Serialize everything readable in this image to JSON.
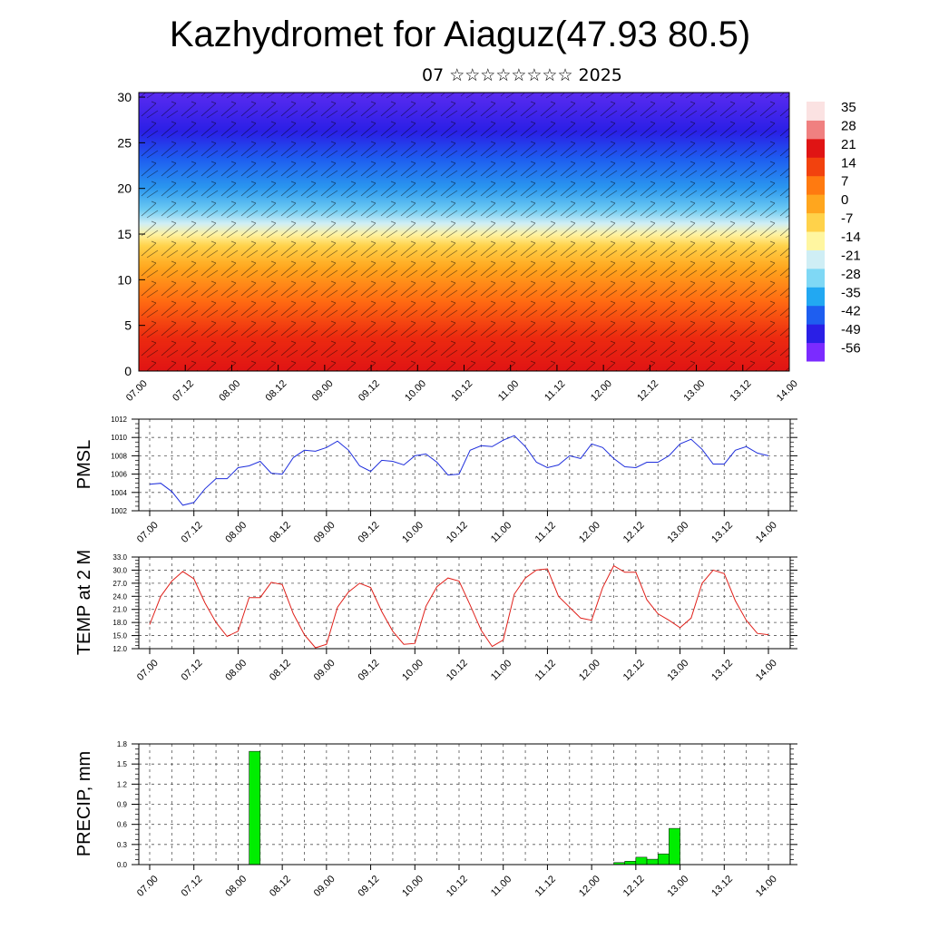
{
  "page": {
    "title": "Kazhydromet for Aiaguz(47.93 80.5)",
    "subtitle": "07 ☆☆☆☆☆☆☆☆ 2025"
  },
  "colors": {
    "pressure_line": "#1f2fdc",
    "temperature_line": "#e0201a",
    "precip_bar": "#00ee00",
    "grid": "#555555"
  },
  "chart_data": [
    {
      "type": "heatmap",
      "description_of_fill": "temperature cross-section with wind barbs",
      "x_tick_labels": [
        "07.00",
        "07.12",
        "08.00",
        "08.12",
        "09.00",
        "09.12",
        "10.00",
        "10.12",
        "11.00",
        "11.12",
        "12.00",
        "12.12",
        "13.00",
        "13.12",
        "14.00"
      ],
      "y_ticks": [
        0,
        5,
        10,
        15,
        20,
        25,
        30
      ],
      "ylim": [
        0,
        30.5
      ],
      "colorbar_labels": [
        "35",
        "28",
        "21",
        "14",
        "7",
        "0",
        "-7",
        "-14",
        "-21",
        "-28",
        "-35",
        "-42",
        "-49",
        "-56"
      ],
      "colorbar_range": [
        -63,
        42
      ],
      "colorscale": [
        "#7b2bff",
        "#2a1fe6",
        "#1e5ef0",
        "#22a8f2",
        "#7fd8f5",
        "#cfeef5",
        "#fff6a0",
        "#ffd24a",
        "#ffa61e",
        "#ff7a10",
        "#f2420e",
        "#e01414",
        "#f08080",
        "#fbe2e2"
      ]
    },
    {
      "type": "line",
      "ylabel": "PMSL",
      "ylim": [
        1002,
        1012
      ],
      "y_ticks": [
        1002,
        1004,
        1006,
        1008,
        1010,
        1012
      ],
      "x_tick_labels": [
        "07.00",
        "07.12",
        "08.00",
        "08.12",
        "09.00",
        "09.12",
        "10.00",
        "10.12",
        "11.00",
        "11.12",
        "12.00",
        "12.12",
        "13.00",
        "13.12",
        "14.00"
      ],
      "x_range_hours": [
        0,
        168
      ],
      "series": [
        {
          "values": [
            1004.9,
            1005.0,
            1004.1,
            1002.6,
            1002.9,
            1004.4,
            1005.5,
            1005.5,
            1006.7,
            1006.9,
            1007.4,
            1006.1,
            1006.0,
            1007.8,
            1008.6,
            1008.5,
            1008.9,
            1009.6,
            1008.6,
            1006.9,
            1006.3,
            1007.5,
            1007.4,
            1007.0,
            1008.0,
            1008.2,
            1007.3,
            1005.9,
            1006.0,
            1008.6,
            1009.1,
            1009.0,
            1009.7,
            1010.2,
            1009.0,
            1007.3,
            1006.7,
            1007.0,
            1008.0,
            1007.7,
            1009.3,
            1008.9,
            1007.7,
            1006.8,
            1006.7,
            1007.3,
            1007.3,
            1008.0,
            1009.3,
            1009.8,
            1008.7,
            1007.1,
            1007.1,
            1008.6,
            1009.0,
            1008.3,
            1008.0
          ]
        }
      ]
    },
    {
      "type": "line",
      "ylabel": "TEMP at 2 M",
      "ylim": [
        12.0,
        33.0
      ],
      "y_tick_labels": [
        "12.0",
        "15.0",
        "18.0",
        "21.0",
        "24.0",
        "27.0",
        "30.0",
        "33.0"
      ],
      "x_tick_labels": [
        "07.00",
        "07.12",
        "08.00",
        "08.12",
        "09.00",
        "09.12",
        "10.00",
        "10.12",
        "11.00",
        "11.12",
        "12.00",
        "12.12",
        "13.00",
        "13.12",
        "14.00"
      ],
      "x_range_hours": [
        0,
        168
      ],
      "series": [
        {
          "values": [
            17.5,
            24.0,
            27.5,
            29.7,
            28.0,
            22.5,
            18.0,
            14.8,
            16.0,
            23.7,
            23.7,
            27.2,
            26.7,
            20.0,
            15.2,
            12.2,
            13.0,
            21.5,
            25.0,
            27.0,
            26.0,
            20.5,
            16.0,
            13.0,
            13.2,
            21.7,
            26.2,
            28.2,
            27.5,
            22.0,
            16.2,
            12.5,
            14.0,
            24.5,
            28.2,
            30.0,
            30.3,
            24.0,
            21.5,
            19.0,
            18.5,
            26.0,
            31.0,
            29.5,
            29.5,
            23.2,
            20.0,
            18.5,
            16.8,
            19.0,
            27.0,
            30.0,
            29.2,
            23.0,
            18.5,
            15.5,
            15.2
          ]
        }
      ]
    },
    {
      "type": "bar",
      "ylabel": "PRECIP, mm",
      "ylim": [
        0.0,
        1.8
      ],
      "y_tick_labels": [
        "0.0",
        "0.3",
        "0.6",
        "0.9",
        "1.2",
        "1.5",
        "1.8"
      ],
      "x_tick_labels": [
        "07.00",
        "07.12",
        "08.00",
        "08.12",
        "09.00",
        "09.12",
        "10.00",
        "10.12",
        "11.00",
        "11.12",
        "12.00",
        "12.12",
        "13.00",
        "13.12",
        "14.00"
      ],
      "x_range_hours": [
        0,
        168
      ],
      "bars": [
        {
          "hour": 30,
          "value": 1.69
        },
        {
          "hour": 129,
          "value": 0.03
        },
        {
          "hour": 132,
          "value": 0.05
        },
        {
          "hour": 135,
          "value": 0.11
        },
        {
          "hour": 138,
          "value": 0.08
        },
        {
          "hour": 141,
          "value": 0.16
        },
        {
          "hour": 144,
          "value": 0.54
        }
      ]
    }
  ]
}
